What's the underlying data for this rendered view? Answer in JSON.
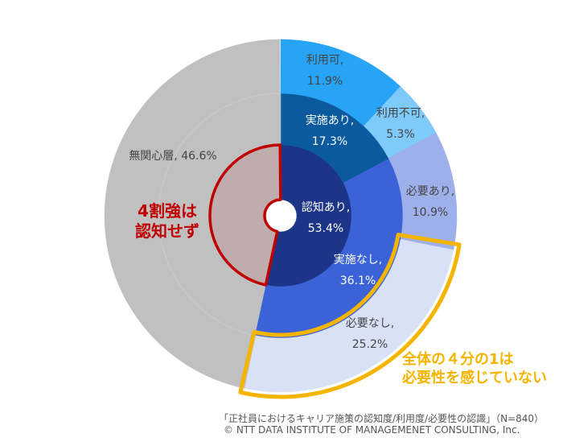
{
  "chart_data": {
    "type": "pie",
    "subtype": "sunburst",
    "title": "",
    "rings": [
      {
        "level": 1,
        "segments": [
          {
            "name": "認知あり",
            "value": 53.4,
            "label": "認知あり,",
            "pct": "53.4%",
            "color": "#1c3586"
          },
          {
            "name": "無関心層",
            "value": 46.6,
            "label": "",
            "pct": "",
            "color": "#bfadad",
            "outline": "#c00000"
          }
        ]
      },
      {
        "level": 2,
        "segments": [
          {
            "name": "実施あり",
            "value": 17.3,
            "label": "実施あり,",
            "pct": "17.3%",
            "color": "#0b5a9e"
          },
          {
            "name": "実施なし",
            "value": 36.1,
            "label": "実施なし,",
            "pct": "36.1%",
            "color": "#3c62d8"
          },
          {
            "name": "無関心層",
            "value": 46.6,
            "label": "",
            "pct": "",
            "color": "#c0c0c0"
          }
        ]
      },
      {
        "level": 3,
        "segments": [
          {
            "name": "利用可",
            "value": 11.9,
            "label": "利用可,",
            "pct": "11.9%",
            "color": "#28a4f7"
          },
          {
            "name": "利用不可",
            "value": 5.3,
            "label": "利用不可,",
            "pct": "5.3%",
            "color": "#7ecafb"
          },
          {
            "name": "必要あり",
            "value": 10.9,
            "label": "必要あり,",
            "pct": "10.9%",
            "color": "#9db0ea"
          },
          {
            "name": "必要なし",
            "value": 25.2,
            "label": "必要なし,",
            "pct": "25.2%",
            "color": "#d9e1f6",
            "outline": "#f5b400"
          },
          {
            "name": "無関心層",
            "value": 46.6,
            "label": "無関心層, 46.6%",
            "pct": "",
            "color": "#c0c0c0"
          }
        ]
      }
    ]
  },
  "annotations": {
    "left": "4割強は\n認知せず",
    "right": "全体の４分の1は\n必要性を感じていない"
  },
  "source": {
    "line1": "「正社員におけるキャリア施策の認知度/利用度/必要性の認識」（N=840）",
    "line2": "© NTT DATA INSTITUTE OF MANAGEMENET CONSULTING, Inc."
  }
}
